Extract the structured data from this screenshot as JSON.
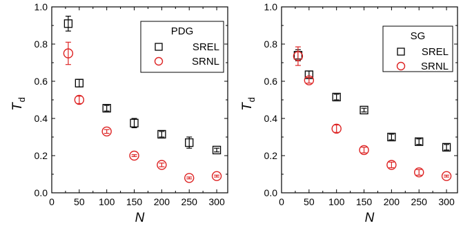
{
  "chart_data": [
    {
      "type": "scatter",
      "title": "",
      "xlabel": "N",
      "ylabel": "T",
      "ylabel_subscript": "d",
      "xlim": [
        0,
        320
      ],
      "ylim": [
        0,
        1.0
      ],
      "x_ticks": [
        0,
        50,
        100,
        150,
        200,
        250,
        300
      ],
      "y_ticks": [
        0.0,
        0.2,
        0.4,
        0.6,
        0.8,
        1.0
      ],
      "x_tick_labels": [
        "0",
        "50",
        "100",
        "150",
        "200",
        "250",
        "300"
      ],
      "y_tick_labels": [
        "0.0",
        "0.2",
        "0.4",
        "0.6",
        "0.8",
        "1.0"
      ],
      "grid": false,
      "legend": {
        "title": "PDG",
        "position": "top-right"
      },
      "series": [
        {
          "name": "SREL",
          "marker": "square",
          "color": "#000000",
          "x": [
            30,
            50,
            100,
            150,
            200,
            250,
            300
          ],
          "y": [
            0.91,
            0.59,
            0.455,
            0.375,
            0.315,
            0.27,
            0.23
          ],
          "err": [
            0.04,
            0.02,
            0.015,
            0.025,
            0.015,
            0.03,
            0.01
          ]
        },
        {
          "name": "SRNL",
          "marker": "circle",
          "color": "#dd2222",
          "x": [
            30,
            50,
            100,
            150,
            200,
            250,
            300
          ],
          "y": [
            0.75,
            0.5,
            0.33,
            0.2,
            0.15,
            0.08,
            0.09
          ],
          "err": [
            0.06,
            0.02,
            0.01,
            0.005,
            0.01,
            0.005,
            0.005
          ]
        }
      ]
    },
    {
      "type": "scatter",
      "title": "",
      "xlabel": "N",
      "ylabel": "T",
      "ylabel_subscript": "d",
      "xlim": [
        0,
        320
      ],
      "ylim": [
        0,
        1.0
      ],
      "x_ticks": [
        0,
        50,
        100,
        150,
        200,
        250,
        300
      ],
      "y_ticks": [
        0.0,
        0.2,
        0.4,
        0.6,
        0.8,
        1.0
      ],
      "x_tick_labels": [
        "0",
        "50",
        "100",
        "150",
        "200",
        "250",
        "300"
      ],
      "y_tick_labels": [
        "0.0",
        "0.2",
        "0.4",
        "0.6",
        "0.8",
        "1.0"
      ],
      "grid": false,
      "legend": {
        "title": "SG",
        "position": "top-right"
      },
      "series": [
        {
          "name": "SREL",
          "marker": "square",
          "color": "#000000",
          "x": [
            30,
            50,
            100,
            150,
            200,
            250,
            300
          ],
          "y": [
            0.74,
            0.635,
            0.515,
            0.445,
            0.3,
            0.275,
            0.245
          ],
          "err": [
            0.03,
            0.02,
            0.015,
            0.01,
            0.015,
            0.015,
            0.015
          ]
        },
        {
          "name": "SRNL",
          "marker": "circle",
          "color": "#dd2222",
          "x": [
            30,
            50,
            100,
            150,
            200,
            250,
            300
          ],
          "y": [
            0.735,
            0.605,
            0.345,
            0.23,
            0.15,
            0.11,
            0.09
          ],
          "err": [
            0.05,
            0.015,
            0.02,
            0.015,
            0.015,
            0.015,
            0.005
          ]
        }
      ]
    }
  ]
}
